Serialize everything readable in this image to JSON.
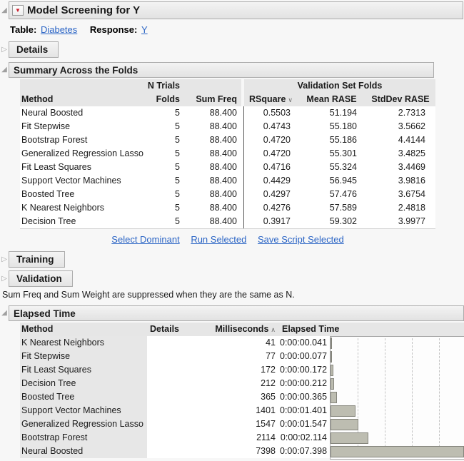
{
  "window": {
    "title": "Model Screening for Y"
  },
  "icons": {
    "disclosure_open": "◢",
    "disclosure_closed": "▷",
    "red_triangle": "▼",
    "sort_down": "∨",
    "sort_up": "∧"
  },
  "colors": {
    "link_blue": "#2a64c5",
    "red_triangle": "#cc1f2d",
    "header_gray": "#e6e6e6",
    "bar_fill": "#bdbdb1",
    "bar_border": "#85857c"
  },
  "meta": {
    "table_label": "Table:",
    "table_value": "Diabetes",
    "response_label": "Response:",
    "response_value": "Y"
  },
  "sections": {
    "details": "Details",
    "summary": "Summary Across the Folds",
    "training": "Training",
    "validation": "Validation",
    "elapsed": "Elapsed Time"
  },
  "summary_table": {
    "group_header": "Validation Set Folds",
    "header": {
      "method": "Method",
      "ntrials": "N Trials",
      "folds": "Folds",
      "sum_freq": "Sum Freq",
      "rsquare": "RSquare",
      "mean_rase": "Mean RASE",
      "stddev_rase": "StdDev RASE"
    },
    "rows": [
      {
        "method": "Neural Boosted",
        "folds": "5",
        "sum_freq": "88.400",
        "rsquare": "0.5503",
        "mean_rase": "51.194",
        "stddev_rase": "2.7313"
      },
      {
        "method": "Fit Stepwise",
        "folds": "5",
        "sum_freq": "88.400",
        "rsquare": "0.4743",
        "mean_rase": "55.180",
        "stddev_rase": "3.5662"
      },
      {
        "method": "Bootstrap Forest",
        "folds": "5",
        "sum_freq": "88.400",
        "rsquare": "0.4720",
        "mean_rase": "55.186",
        "stddev_rase": "4.4144"
      },
      {
        "method": "Generalized Regression Lasso",
        "folds": "5",
        "sum_freq": "88.400",
        "rsquare": "0.4720",
        "mean_rase": "55.301",
        "stddev_rase": "3.4825"
      },
      {
        "method": "Fit Least Squares",
        "folds": "5",
        "sum_freq": "88.400",
        "rsquare": "0.4716",
        "mean_rase": "55.324",
        "stddev_rase": "3.4469"
      },
      {
        "method": "Support Vector Machines",
        "folds": "5",
        "sum_freq": "88.400",
        "rsquare": "0.4429",
        "mean_rase": "56.945",
        "stddev_rase": "3.9816"
      },
      {
        "method": "Boosted Tree",
        "folds": "5",
        "sum_freq": "88.400",
        "rsquare": "0.4297",
        "mean_rase": "57.476",
        "stddev_rase": "3.6754"
      },
      {
        "method": "K Nearest Neighbors",
        "folds": "5",
        "sum_freq": "88.400",
        "rsquare": "0.4276",
        "mean_rase": "57.589",
        "stddev_rase": "2.4818"
      },
      {
        "method": "Decision Tree",
        "folds": "5",
        "sum_freq": "88.400",
        "rsquare": "0.3917",
        "mean_rase": "59.302",
        "stddev_rase": "3.9977"
      }
    ]
  },
  "links": [
    "Select Dominant",
    "Run Selected",
    "Save Script Selected"
  ],
  "note": "Sum Freq and Sum Weight are suppressed when they are the same as N.",
  "elapsed_table": {
    "header": {
      "method": "Method",
      "details": "Details",
      "milliseconds": "Milliseconds",
      "elapsed": "Elapsed Time"
    },
    "rows": [
      {
        "method": "K Nearest Neighbors",
        "details": "",
        "milliseconds": "41",
        "elapsed": "0:00:00.041"
      },
      {
        "method": "Fit Stepwise",
        "details": "",
        "milliseconds": "77",
        "elapsed": "0:00:00.077"
      },
      {
        "method": "Fit Least Squares",
        "details": "",
        "milliseconds": "172",
        "elapsed": "0:00:00.172"
      },
      {
        "method": "Decision Tree",
        "details": "",
        "milliseconds": "212",
        "elapsed": "0:00:00.212"
      },
      {
        "method": "Boosted Tree",
        "details": "",
        "milliseconds": "365",
        "elapsed": "0:00:00.365"
      },
      {
        "method": "Support Vector Machines",
        "details": "",
        "milliseconds": "1401",
        "elapsed": "0:00:01.401"
      },
      {
        "method": "Generalized Regression Lasso",
        "details": "",
        "milliseconds": "1547",
        "elapsed": "0:00:01.547"
      },
      {
        "method": "Bootstrap Forest",
        "details": "",
        "milliseconds": "2114",
        "elapsed": "0:00:02.114"
      },
      {
        "method": "Neural Boosted",
        "details": "",
        "milliseconds": "7398",
        "elapsed": "0:00:07.398"
      }
    ]
  },
  "chart_data": {
    "type": "bar",
    "orientation": "horizontal",
    "title": "Elapsed Time (Milliseconds)",
    "categories": [
      "K Nearest Neighbors",
      "Fit Stepwise",
      "Fit Least Squares",
      "Decision Tree",
      "Boosted Tree",
      "Support Vector Machines",
      "Generalized Regression Lasso",
      "Bootstrap Forest",
      "Neural Boosted"
    ],
    "values": [
      41,
      77,
      172,
      212,
      365,
      1401,
      1547,
      2114,
      7398
    ],
    "xlabel": "Milliseconds",
    "xmax": 7398,
    "gridlines": [
      1500,
      3000,
      4500,
      6000
    ],
    "grid": true,
    "legend": "none"
  }
}
